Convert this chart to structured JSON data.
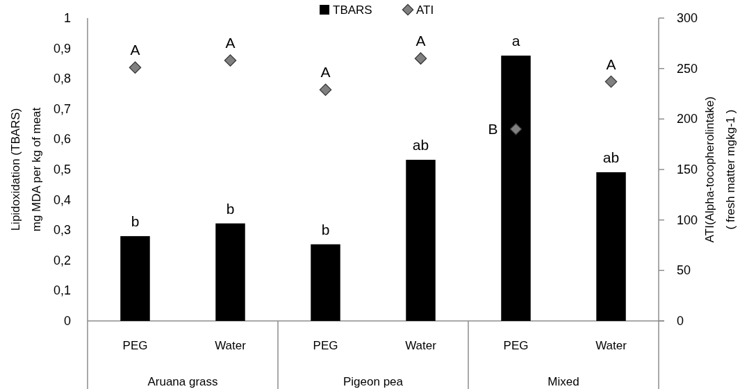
{
  "chart_data": {
    "type": "bar",
    "categories": [
      "PEG",
      "Water",
      "PEG",
      "Water",
      "PEG",
      "Water"
    ],
    "annotations": [
      "Aruana grass",
      "Pigeon pea",
      "Mixed"
    ],
    "ylabel": "Lipidoxidation (TBARS)\nmg MDA per kg of meat",
    "y2label": "ATI(Alpha-tocopherolintake)\n( fresh matter  mgkg-1 )",
    "ylim": [
      0,
      1
    ],
    "yticks": [
      {
        "value": 0,
        "label": "0"
      },
      {
        "value": 0.1,
        "label": "0,1"
      },
      {
        "value": 0.2,
        "label": "0,2"
      },
      {
        "value": 0.3,
        "label": "0,3"
      },
      {
        "value": 0.4,
        "label": "0,4"
      },
      {
        "value": 0.5,
        "label": "0,5"
      },
      {
        "value": 0.6,
        "label": "0,6"
      },
      {
        "value": 0.7,
        "label": "0,7"
      },
      {
        "value": 0.8,
        "label": "0,8"
      },
      {
        "value": 0.9,
        "label": "0,9"
      },
      {
        "value": 1,
        "label": "1"
      }
    ],
    "y2lim": [
      0,
      300
    ],
    "y2ticks": [
      0,
      50,
      100,
      150,
      200,
      250,
      300
    ],
    "legend": "top",
    "grid": false,
    "series": [
      {
        "name": "TBARS",
        "color": "#000000",
        "values": [
          0.28,
          0.322,
          0.253,
          0.532,
          0.876,
          0.491
        ],
        "value_labels": [
          "b",
          "b",
          "b",
          "ab",
          "a",
          "ab"
        ]
      },
      {
        "name": "ATI",
        "type": "scatter",
        "axis": "y2",
        "marker": "diamond",
        "color": "#808080",
        "values": [
          251,
          258,
          229,
          260,
          190,
          237
        ],
        "value_labels": [
          "A",
          "A",
          "A",
          "A",
          "B",
          "A"
        ]
      }
    ]
  }
}
